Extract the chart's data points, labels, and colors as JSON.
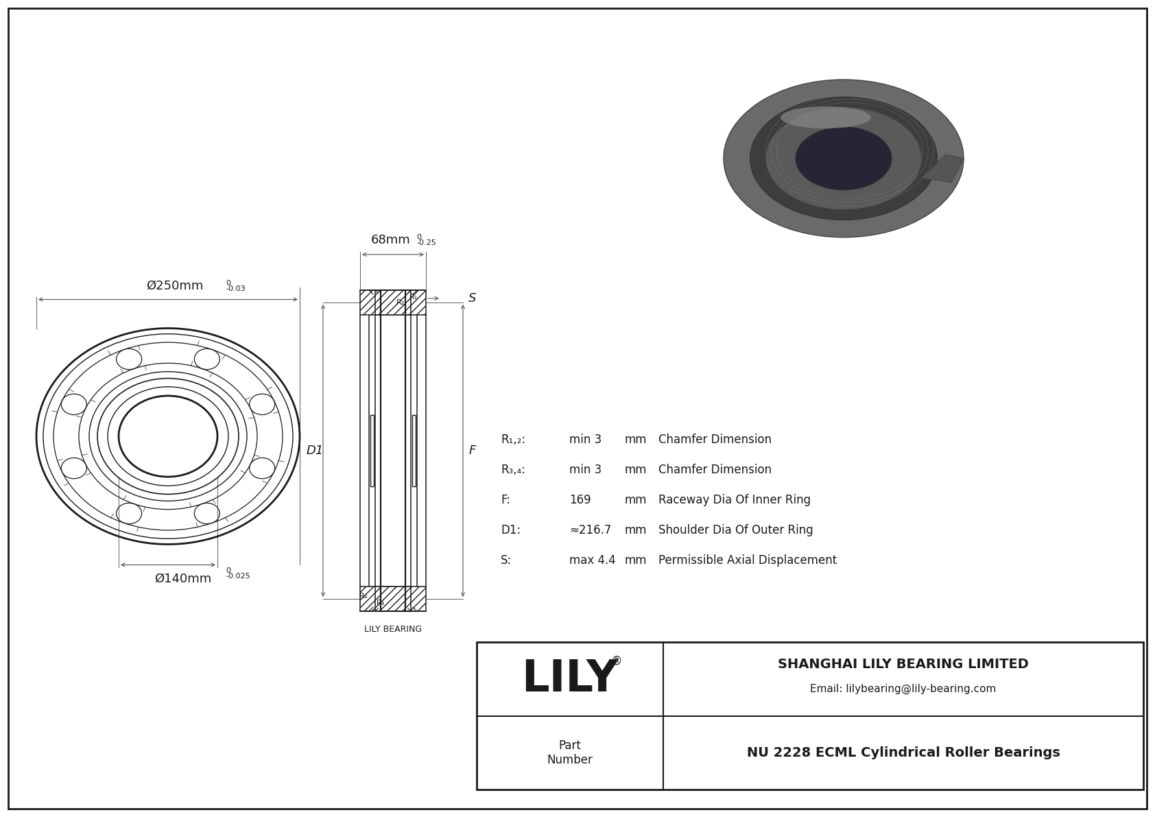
{
  "bg_color": "#ffffff",
  "border_color": "#000000",
  "drawing_color": "#1a1a1a",
  "outer_dia_label": "Ø250mm",
  "outer_dia_tol_top": "0",
  "outer_dia_tol_bot": "-0.03",
  "inner_dia_label": "Ø140mm",
  "inner_dia_tol_top": "0",
  "inner_dia_tol_bot": "-0.025",
  "width_label": "68mm",
  "width_tol_top": "0",
  "width_tol_bot": "-0.25",
  "params": [
    {
      "label": "R₁,₂:",
      "value": "min 3",
      "unit": "mm",
      "desc": "Chamfer Dimension"
    },
    {
      "label": "R₃,₄:",
      "value": "min 3",
      "unit": "mm",
      "desc": "Chamfer Dimension"
    },
    {
      "label": "F:",
      "value": "169",
      "unit": "mm",
      "desc": "Raceway Dia Of Inner Ring"
    },
    {
      "label": "D1:",
      "value": "≈216.7",
      "unit": "mm",
      "desc": "Shoulder Dia Of Outer Ring"
    },
    {
      "label": "S:",
      "value": "max 4.4",
      "unit": "mm",
      "desc": "Permissible Axial Displacement"
    }
  ],
  "company_name": "SHANGHAI LILY BEARING LIMITED",
  "email": "Email: lilybearing@lily-bearing.com",
  "part_number": "NU 2228 ECML Cylindrical Roller Bearings",
  "logo_text": "LILY",
  "registered": "®",
  "part_label": "Part\nNumber"
}
